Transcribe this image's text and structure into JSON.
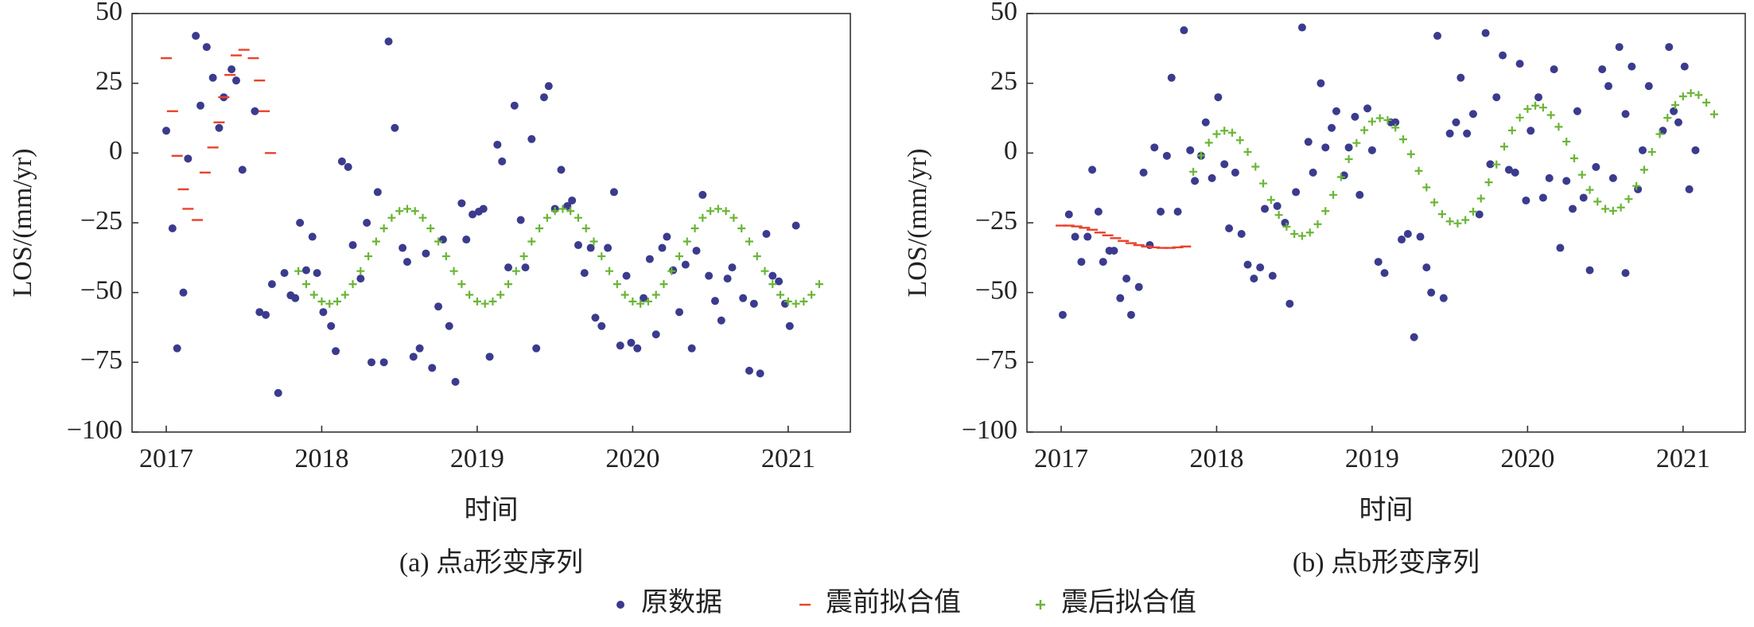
{
  "chart_data": [
    {
      "type": "scatter",
      "caption": "(a) 点a形变序列",
      "x_label": "时间",
      "y_label": "LOS/(mm/yr)",
      "xlim": [
        2016.78,
        2021.4
      ],
      "xticks": [
        2017,
        2018,
        2019,
        2020,
        2021
      ],
      "ylim": [
        -100,
        50
      ],
      "yticks": [
        {
          "value": -100,
          "label": "−100"
        },
        {
          "value": -75,
          "label": "−75"
        },
        {
          "value": -50,
          "label": "−50"
        },
        {
          "value": -25,
          "label": "−25"
        },
        0,
        25,
        50
      ],
      "legend": "bottom",
      "series": [
        {
          "name": "原数据",
          "color": "#3b3b8e",
          "marker": "dot",
          "x": [
            2017.0,
            2017.04,
            2017.07,
            2017.11,
            2017.14,
            2017.19,
            2017.22,
            2017.26,
            2017.3,
            2017.34,
            2017.37,
            2017.42,
            2017.45,
            2017.49,
            2017.57,
            2017.6,
            2017.64,
            2017.68,
            2017.72,
            2017.76,
            2017.8,
            2017.83,
            2017.86,
            2017.9,
            2017.94,
            2017.97,
            2018.01,
            2018.06,
            2018.09,
            2018.13,
            2018.17,
            2018.2,
            2018.25,
            2018.29,
            2018.32,
            2018.36,
            2018.4,
            2018.43,
            2018.47,
            2018.52,
            2018.55,
            2018.59,
            2018.63,
            2018.67,
            2018.71,
            2018.75,
            2018.78,
            2018.82,
            2018.86,
            2018.9,
            2018.93,
            2018.97,
            2019.01,
            2019.04,
            2019.08,
            2019.13,
            2019.16,
            2019.2,
            2019.24,
            2019.28,
            2019.31,
            2019.35,
            2019.38,
            2019.43,
            2019.46,
            2019.5,
            2019.54,
            2019.58,
            2019.61,
            2019.65,
            2019.69,
            2019.73,
            2019.76,
            2019.8,
            2019.84,
            2019.88,
            2019.92,
            2019.96,
            2019.99,
            2020.03,
            2020.07,
            2020.11,
            2020.15,
            2020.19,
            2020.22,
            2020.26,
            2020.3,
            2020.34,
            2020.38,
            2020.41,
            2020.45,
            2020.49,
            2020.53,
            2020.57,
            2020.61,
            2020.64,
            2020.71,
            2020.75,
            2020.78,
            2020.82,
            2020.86,
            2020.9,
            2020.94,
            2020.98,
            2021.01,
            2021.05
          ],
          "values": [
            8,
            -27,
            -70,
            -50,
            -2,
            42,
            17,
            38,
            27,
            9,
            20,
            30,
            26,
            -6,
            15,
            -57,
            -58,
            -47,
            -86,
            -43,
            -51,
            -52,
            -25,
            -42,
            -30,
            -43,
            -57,
            -62,
            -71,
            -3,
            -5,
            -33,
            -45,
            -25,
            -75,
            -14,
            -75,
            40,
            9,
            -34,
            -39,
            -73,
            -70,
            -36,
            -77,
            -55,
            -31,
            -62,
            -82,
            -18,
            -31,
            -22,
            -21,
            -20,
            -73,
            3,
            -3,
            -41,
            17,
            -24,
            -41,
            5,
            -70,
            20,
            24,
            -20,
            -6,
            -19,
            -17,
            -33,
            -43,
            -34,
            -59,
            -62,
            -34,
            -14,
            -69,
            -44,
            -68,
            -70,
            -52,
            -38,
            -65,
            -34,
            -30,
            -42,
            -57,
            -40,
            -70,
            -35,
            -15,
            -44,
            -53,
            -60,
            -45,
            -41,
            -52,
            -78,
            -54,
            -79,
            -29,
            -44,
            -46,
            -54,
            -62,
            -26
          ]
        },
        {
          "name": "震前拟合值",
          "color": "#e8432c",
          "marker": "dash",
          "x": [
            2017.0,
            2017.04,
            2017.07,
            2017.11,
            2017.14,
            2017.2,
            2017.25,
            2017.3,
            2017.34,
            2017.37,
            2017.41,
            2017.45,
            2017.5,
            2017.56,
            2017.6,
            2017.63,
            2017.67
          ],
          "values": [
            34,
            15,
            -1,
            -13,
            -20,
            -24,
            -7,
            2,
            11,
            20,
            28,
            35,
            37,
            34,
            26,
            15,
            0
          ]
        },
        {
          "name": "震后拟合值",
          "color": "#6ab536",
          "marker": "plus",
          "x": [
            2017.85,
            2017.9,
            2017.95,
            2018,
            2018.05,
            2018.1,
            2018.15,
            2018.2,
            2018.25,
            2018.3,
            2018.35,
            2018.4,
            2018.45,
            2018.5,
            2018.55,
            2018.6,
            2018.65,
            2018.7,
            2018.75,
            2018.8,
            2018.85,
            2018.9,
            2018.95,
            2019,
            2019.05,
            2019.1,
            2019.15,
            2019.2,
            2019.25,
            2019.3,
            2019.35,
            2019.4,
            2019.45,
            2019.5,
            2019.55,
            2019.6,
            2019.65,
            2019.7,
            2019.75,
            2019.8,
            2019.85,
            2019.9,
            2019.95,
            2020,
            2020.05,
            2020.1,
            2020.15,
            2020.2,
            2020.25,
            2020.3,
            2020.35,
            2020.4,
            2020.45,
            2020.5,
            2020.55,
            2020.6,
            2020.65,
            2020.7,
            2020.75,
            2020.8,
            2020.85,
            2020.9,
            2020.95,
            2021,
            2021.05,
            2021.1,
            2021.15,
            2021.2
          ],
          "values": [
            -42.3,
            -47,
            -50.8,
            -53.2,
            -54,
            -53.2,
            -50.8,
            -47,
            -42.3,
            -37,
            -31.7,
            -27,
            -23.2,
            -20.8,
            -20,
            -20.8,
            -23.2,
            -27,
            -31.7,
            -37,
            -42.3,
            -47,
            -50.8,
            -53.2,
            -54,
            -53.2,
            -50.8,
            -47,
            -42.3,
            -37,
            -31.7,
            -27,
            -23.2,
            -20.8,
            -20,
            -20.8,
            -23.2,
            -27,
            -31.7,
            -37,
            -42.3,
            -47,
            -50.8,
            -53.2,
            -54,
            -53.2,
            -50.8,
            -47,
            -42.3,
            -37,
            -31.7,
            -27,
            -23.2,
            -20.8,
            -20,
            -20.8,
            -23.2,
            -27,
            -31.7,
            -37,
            -42.3,
            -47,
            -50.8,
            -53.2,
            -54,
            -53.2,
            -50.8,
            -47
          ]
        }
      ]
    },
    {
      "type": "scatter",
      "caption": "(b) 点b形变序列",
      "x_label": "时间",
      "y_label": "LOS/(mm/yr)",
      "xlim": [
        2016.78,
        2021.4
      ],
      "xticks": [
        2017,
        2018,
        2019,
        2020,
        2021
      ],
      "ylim": [
        -100,
        50
      ],
      "yticks": [
        {
          "value": -100,
          "label": "−100"
        },
        {
          "value": -75,
          "label": "−75"
        },
        {
          "value": -50,
          "label": "−50"
        },
        {
          "value": -25,
          "label": "−25"
        },
        0,
        25,
        50
      ],
      "series": [
        {
          "color": "#3b3b8e",
          "marker": "dot",
          "x": [
            2017.01,
            2017.05,
            2017.09,
            2017.13,
            2017.17,
            2017.2,
            2017.24,
            2017.27,
            2017.31,
            2017.34,
            2017.38,
            2017.42,
            2017.45,
            2017.5,
            2017.53,
            2017.57,
            2017.6,
            2017.64,
            2017.68,
            2017.71,
            2017.75,
            2017.79,
            2017.83,
            2017.86,
            2017.9,
            2017.93,
            2017.97,
            2018.01,
            2018.05,
            2018.08,
            2018.12,
            2018.16,
            2018.2,
            2018.24,
            2018.28,
            2018.31,
            2018.36,
            2018.39,
            2018.44,
            2018.47,
            2018.51,
            2018.55,
            2018.59,
            2018.62,
            2018.67,
            2018.7,
            2018.74,
            2018.77,
            2018.82,
            2018.85,
            2018.89,
            2018.92,
            2018.97,
            2019.0,
            2019.04,
            2019.08,
            2019.12,
            2019.15,
            2019.19,
            2019.23,
            2019.27,
            2019.31,
            2019.35,
            2019.38,
            2019.42,
            2019.46,
            2019.5,
            2019.54,
            2019.57,
            2019.61,
            2019.65,
            2019.69,
            2019.73,
            2019.76,
            2019.8,
            2019.84,
            2019.88,
            2019.92,
            2019.95,
            2019.99,
            2020.02,
            2020.07,
            2020.1,
            2020.14,
            2020.17,
            2020.21,
            2020.25,
            2020.29,
            2020.32,
            2020.36,
            2020.4,
            2020.44,
            2020.48,
            2020.52,
            2020.55,
            2020.59,
            2020.63,
            2020.63,
            2020.67,
            2020.71,
            2020.74,
            2020.78,
            2020.87,
            2020.91,
            2020.94,
            2020.97,
            2021.01,
            2021.04,
            2021.08
          ],
          "values": [
            -58,
            -22,
            -30,
            -39,
            -30,
            -6,
            -21,
            -39,
            -35,
            -35,
            -52,
            -45,
            -58,
            -48,
            -7,
            -33,
            2,
            -21,
            -1,
            27,
            -21,
            44,
            1,
            -10,
            -1,
            11,
            -9,
            20,
            -4,
            -27,
            -7,
            -29,
            -40,
            -45,
            -41,
            -20,
            -44,
            -19,
            -25,
            -54,
            -14,
            45,
            4,
            -7,
            25,
            2,
            9,
            15,
            -8,
            2,
            13,
            -15,
            16,
            1,
            -39,
            -43,
            11,
            11,
            -31,
            -29,
            -66,
            -30,
            -41,
            -50,
            42,
            -52,
            7,
            11,
            27,
            7,
            14,
            -22,
            43,
            -4,
            20,
            35,
            -6,
            -7,
            32,
            -17,
            8,
            20,
            -16,
            -9,
            30,
            -34,
            -10,
            -20,
            15,
            -16,
            -42,
            -5,
            30,
            24,
            -9,
            38,
            14,
            -43,
            31,
            -13,
            1,
            24,
            8,
            38,
            15,
            11,
            31,
            -13,
            1
          ]
        },
        {
          "color": "#e8432c",
          "marker": "dash",
          "x": [
            2017.0,
            2017.05,
            2017.1,
            2017.15,
            2017.2,
            2017.25,
            2017.3,
            2017.35,
            2017.4,
            2017.45,
            2017.5,
            2017.55,
            2017.6,
            2017.65,
            2017.7,
            2017.75,
            2017.8
          ],
          "values": [
            -26,
            -26,
            -26.3,
            -26.8,
            -27.5,
            -28.5,
            -29.5,
            -30.5,
            -31.5,
            -32.3,
            -33,
            -33.5,
            -33.8,
            -34,
            -34,
            -33.8,
            -33.5
          ]
        },
        {
          "color": "#6ab536",
          "marker": "plus",
          "x": [
            2017.85,
            2017.9,
            2017.95,
            2018,
            2018.05,
            2018.1,
            2018.15,
            2018.2,
            2018.25,
            2018.3,
            2018.35,
            2018.4,
            2018.45,
            2018.5,
            2018.55,
            2018.6,
            2018.65,
            2018.7,
            2018.75,
            2018.8,
            2018.85,
            2018.9,
            2018.95,
            2019,
            2019.05,
            2019.1,
            2019.15,
            2019.2,
            2019.25,
            2019.3,
            2019.35,
            2019.4,
            2019.45,
            2019.5,
            2019.55,
            2019.6,
            2019.65,
            2019.7,
            2019.75,
            2019.8,
            2019.85,
            2019.9,
            2019.95,
            2020,
            2020.05,
            2020.1,
            2020.15,
            2020.2,
            2020.25,
            2020.3,
            2020.35,
            2020.4,
            2020.45,
            2020.5,
            2020.55,
            2020.6,
            2020.65,
            2020.7,
            2020.75,
            2020.8,
            2020.85,
            2020.9,
            2020.95,
            2021,
            2021.05,
            2021.1,
            2021.15,
            2021.2
          ],
          "values": [
            -6.7,
            -0.9,
            3.7,
            6.8,
            8.0,
            7.3,
            4.6,
            0.4,
            -4.9,
            -10.9,
            -16.8,
            -22.2,
            -26.4,
            -29.0,
            -29.7,
            -28.5,
            -25.5,
            -20.8,
            -15.0,
            -8.6,
            -2.2,
            3.6,
            8.2,
            11.3,
            12.5,
            11.8,
            9.1,
            4.9,
            -0.4,
            -6.4,
            -12.3,
            -17.7,
            -21.9,
            -24.5,
            -25.2,
            -24.0,
            -21.0,
            -16.3,
            -10.5,
            -4.1,
            2.3,
            8.1,
            12.7,
            15.8,
            17.0,
            16.3,
            13.6,
            9.4,
            4.1,
            -1.9,
            -7.8,
            -13.2,
            -17.4,
            -20.0,
            -20.7,
            -19.5,
            -16.5,
            -11.8,
            -6.0,
            0.4,
            6.8,
            12.6,
            17.2,
            20.3,
            21.5,
            20.8,
            18.1,
            13.9
          ]
        }
      ]
    }
  ]
}
